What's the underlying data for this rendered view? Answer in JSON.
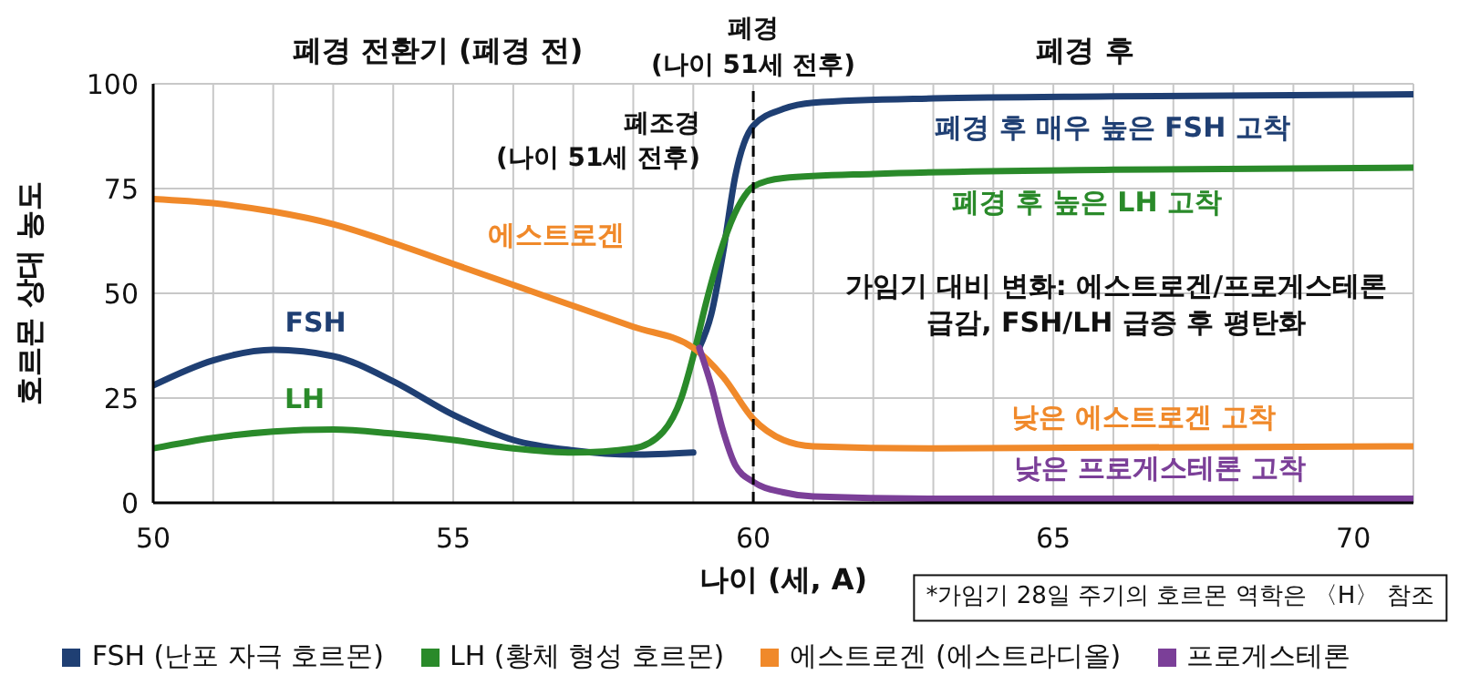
{
  "chart_data": {
    "type": "line",
    "xlabel": "나이 (세, A)",
    "ylabel": "호르몬 상대 농도",
    "xlim": [
      50,
      71
    ],
    "xticks": [
      50,
      {
        "value": 51,
        "label": null
      },
      {
        "value": 52,
        "label": null
      },
      {
        "value": 53,
        "label": null
      },
      {
        "value": 54,
        "label": null
      },
      55,
      {
        "value": 56,
        "label": null
      },
      {
        "value": 57,
        "label": null
      },
      {
        "value": 58,
        "label": null
      },
      {
        "value": 59,
        "label": null
      },
      60,
      {
        "value": 61,
        "label": null
      },
      {
        "value": 62,
        "label": null
      },
      {
        "value": 63,
        "label": null
      },
      {
        "value": 64,
        "label": null
      },
      65,
      {
        "value": 66,
        "label": null
      },
      {
        "value": 67,
        "label": null
      },
      {
        "value": 68,
        "label": null
      },
      {
        "value": 69,
        "label": null
      },
      70,
      {
        "value": 71,
        "label": null
      }
    ],
    "ylim": [
      0,
      100
    ],
    "yticks": [
      0,
      25,
      50,
      75,
      100
    ],
    "grid": true,
    "legend": "bottom",
    "marker": "none",
    "line_style": "solid",
    "series": [
      {
        "name": "FSH (난포 자극 호르몬)",
        "color": "#1f3f73",
        "x": [
          50,
          51,
          52,
          53,
          54,
          55,
          56,
          57,
          58,
          59,
          59.05,
          59.1,
          59.3,
          59.5,
          59.7,
          60,
          60.5,
          61,
          63,
          66,
          71
        ],
        "values": [
          28,
          34,
          36.5,
          35,
          29,
          21,
          15,
          12.5,
          11.5,
          12,
          null,
          37,
          45,
          60,
          78,
          90,
          94,
          95.5,
          96.5,
          97,
          97.5
        ]
      },
      {
        "name": "LH (황체 형성 호르몬)",
        "color": "#2a8a2a",
        "x": [
          50,
          51,
          52,
          53,
          54,
          55,
          56,
          57,
          58,
          58.5,
          58.8,
          59,
          59.2,
          59.5,
          59.8,
          60,
          60.5,
          62,
          66,
          71
        ],
        "values": [
          13,
          15.5,
          17,
          17.5,
          16.5,
          15,
          13,
          12,
          13,
          17,
          25,
          35,
          47,
          62,
          72,
          75.5,
          77.5,
          78.5,
          79.5,
          80
        ]
      },
      {
        "name": "에스트로겐 (에스트라디올)",
        "color": "#f0892a",
        "x": [
          50,
          51,
          52,
          53,
          54,
          55,
          56,
          57,
          58,
          59,
          59.5,
          60,
          60.5,
          61,
          63,
          71
        ],
        "values": [
          72.5,
          71.5,
          69.5,
          66.5,
          62,
          57,
          52,
          47,
          42,
          37,
          30,
          20,
          15,
          13.5,
          13,
          13.5
        ]
      },
      {
        "name": "프로게스테론",
        "color": "#7b3f98",
        "x": [
          59.1,
          59.3,
          59.5,
          59.7,
          60,
          60.5,
          61,
          63,
          71
        ],
        "values": [
          37,
          28,
          17,
          9,
          5,
          2.5,
          1.5,
          1,
          1
        ]
      }
    ],
    "ref_lines": [
      {
        "axis": "x",
        "value": 60,
        "label": "폐경\n(나이 51세 전후)",
        "color": "#000000",
        "line_style": "dashed"
      }
    ],
    "annotations": [
      "폐경 전환기 (폐경 전)",
      "폐경 후",
      "*가임기 28일 주기의 호르몬 역학은 〈H〉 참조",
      "FSH",
      "LH",
      "에스트로겐",
      "폐조경\n(나이 51세 전후)",
      "폐경 후 매우 높은 FSH 고착",
      "폐경 후 높은 LH 고착",
      "가임기 대비 변화: 에스트로겐/프로게스테론\n급감, FSH/LH 급증 후 평탄화",
      "낮은 에스트로겐 고착",
      "낮은 프로게스테론 고착"
    ]
  }
}
